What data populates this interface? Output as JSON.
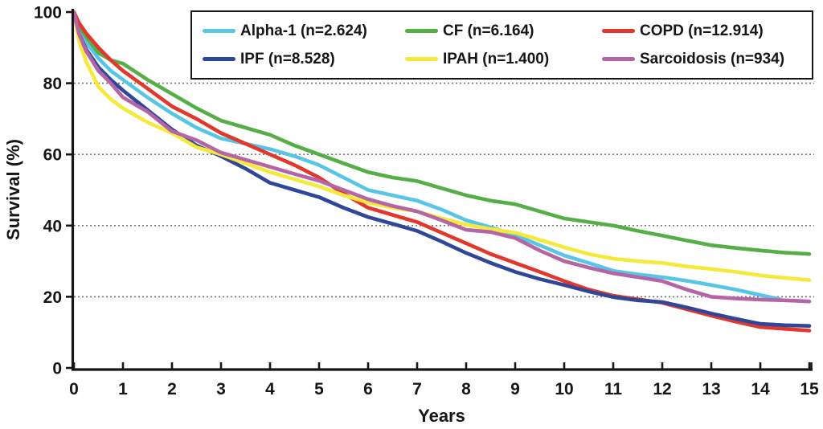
{
  "chart_data": {
    "type": "line",
    "title": "",
    "xlabel": "Years",
    "ylabel": "Survival (%)",
    "xlim": [
      0,
      15
    ],
    "ylim": [
      0,
      100
    ],
    "xticks": [
      0,
      1,
      2,
      3,
      4,
      5,
      6,
      7,
      8,
      9,
      10,
      11,
      12,
      13,
      14,
      15
    ],
    "yticks": [
      0,
      20,
      40,
      60,
      80,
      100
    ],
    "grid": "horizontal dotted gray lines at 20, 40, 60, 80",
    "grid_color": "#7a7a7a",
    "axis_color": "#161616",
    "legend_position": "top inside, boxed, 3 columns x 2 rows",
    "series": [
      {
        "id": "alpha1",
        "label": "Alpha-1 (n=2.624)",
        "color": "#58C5E6",
        "points": [
          [
            0,
            100
          ],
          [
            0.1,
            95
          ],
          [
            0.25,
            91.5
          ],
          [
            0.5,
            87
          ],
          [
            0.75,
            83.5
          ],
          [
            1,
            81
          ],
          [
            1.5,
            76
          ],
          [
            2,
            71.5
          ],
          [
            2.5,
            67.5
          ],
          [
            3,
            64.5
          ],
          [
            3.5,
            63
          ],
          [
            4,
            61.5
          ],
          [
            4.5,
            59.5
          ],
          [
            5,
            57
          ],
          [
            5.5,
            53.5
          ],
          [
            6,
            50
          ],
          [
            6.5,
            48.5
          ],
          [
            7,
            47
          ],
          [
            7.5,
            44.5
          ],
          [
            8,
            41.5
          ],
          [
            8.5,
            39.5
          ],
          [
            9,
            37.3
          ],
          [
            9.5,
            34.5
          ],
          [
            10,
            31.6
          ],
          [
            10.5,
            29.5
          ],
          [
            11,
            27.3
          ],
          [
            11.5,
            26.3
          ],
          [
            12,
            25.5
          ],
          [
            12.5,
            24.5
          ],
          [
            13,
            23.3
          ],
          [
            13.5,
            22
          ],
          [
            14,
            20.5
          ],
          [
            14.4,
            19.3
          ]
        ]
      },
      {
        "id": "cf",
        "label": "CF (n=6.164)",
        "color": "#56AE47",
        "points": [
          [
            0,
            100
          ],
          [
            0.1,
            96
          ],
          [
            0.25,
            93
          ],
          [
            0.5,
            88.5
          ],
          [
            0.75,
            86.5
          ],
          [
            1,
            85.5
          ],
          [
            1.5,
            81
          ],
          [
            2,
            77
          ],
          [
            2.5,
            73
          ],
          [
            3,
            69.5
          ],
          [
            3.5,
            67.5
          ],
          [
            4,
            65.5
          ],
          [
            4.5,
            62.5
          ],
          [
            5,
            60
          ],
          [
            5.5,
            57.5
          ],
          [
            6,
            55
          ],
          [
            6.5,
            53.5
          ],
          [
            7,
            52.5
          ],
          [
            7.5,
            50.5
          ],
          [
            8,
            48.5
          ],
          [
            8.5,
            47
          ],
          [
            9,
            46
          ],
          [
            9.5,
            44
          ],
          [
            10,
            42
          ],
          [
            10.5,
            41
          ],
          [
            11,
            40
          ],
          [
            11.5,
            38.5
          ],
          [
            12,
            37.2
          ],
          [
            12.5,
            35.8
          ],
          [
            13,
            34.5
          ],
          [
            13.5,
            33.7
          ],
          [
            14,
            33
          ],
          [
            14.5,
            32.4
          ],
          [
            15,
            32
          ]
        ]
      },
      {
        "id": "copd",
        "label": "COPD (n=12.914)",
        "color": "#E2372C",
        "points": [
          [
            0,
            100
          ],
          [
            0.1,
            97
          ],
          [
            0.25,
            94
          ],
          [
            0.5,
            90
          ],
          [
            0.75,
            86.5
          ],
          [
            1,
            83.5
          ],
          [
            1.5,
            78.5
          ],
          [
            2,
            73.5
          ],
          [
            2.5,
            70
          ],
          [
            3,
            66
          ],
          [
            3.5,
            63
          ],
          [
            4,
            60
          ],
          [
            4.5,
            57
          ],
          [
            5,
            53.5
          ],
          [
            5.5,
            49
          ],
          [
            6,
            45
          ],
          [
            6.5,
            43
          ],
          [
            7,
            41
          ],
          [
            7.5,
            38
          ],
          [
            8,
            35
          ],
          [
            8.5,
            32
          ],
          [
            9,
            29.5
          ],
          [
            9.5,
            27
          ],
          [
            10,
            24.4
          ],
          [
            10.5,
            22
          ],
          [
            11,
            20.3
          ],
          [
            11.5,
            19.3
          ],
          [
            12,
            18.3
          ],
          [
            12.5,
            16.5
          ],
          [
            13,
            14.7
          ],
          [
            13.5,
            13
          ],
          [
            14,
            11.5
          ],
          [
            14.5,
            11
          ],
          [
            15,
            10.5
          ]
        ]
      },
      {
        "id": "ipf",
        "label": "IPF (n=8.528)",
        "color": "#2F4699",
        "points": [
          [
            0,
            100
          ],
          [
            0.1,
            94
          ],
          [
            0.25,
            89.5
          ],
          [
            0.5,
            84.5
          ],
          [
            0.75,
            81
          ],
          [
            1,
            78
          ],
          [
            1.5,
            72.5
          ],
          [
            2,
            67
          ],
          [
            2.5,
            62.5
          ],
          [
            3,
            59.5
          ],
          [
            3.5,
            56
          ],
          [
            4,
            52
          ],
          [
            4.5,
            50
          ],
          [
            5,
            48
          ],
          [
            5.5,
            45
          ],
          [
            6,
            42.4
          ],
          [
            6.5,
            40.5
          ],
          [
            7,
            38.5
          ],
          [
            7.5,
            35.5
          ],
          [
            8,
            32.3
          ],
          [
            8.5,
            29.5
          ],
          [
            9,
            27
          ],
          [
            9.5,
            25
          ],
          [
            10,
            23.3
          ],
          [
            10.5,
            21.5
          ],
          [
            11,
            19.9
          ],
          [
            11.5,
            19
          ],
          [
            12,
            18.5
          ],
          [
            12.5,
            17
          ],
          [
            13,
            15.3
          ],
          [
            13.5,
            13.8
          ],
          [
            14,
            12.4
          ],
          [
            14.5,
            12
          ],
          [
            15,
            11.8
          ]
        ]
      },
      {
        "id": "ipah",
        "label": "IPAH (n=1.400)",
        "color": "#F5E93C",
        "points": [
          [
            0,
            100
          ],
          [
            0.1,
            92
          ],
          [
            0.25,
            86
          ],
          [
            0.5,
            79
          ],
          [
            0.75,
            75.5
          ],
          [
            1,
            73
          ],
          [
            1.5,
            69
          ],
          [
            2,
            66
          ],
          [
            2.5,
            62
          ],
          [
            3,
            60
          ],
          [
            3.5,
            57.5
          ],
          [
            4,
            55
          ],
          [
            4.5,
            53
          ],
          [
            5,
            51
          ],
          [
            5.5,
            48.5
          ],
          [
            6,
            46.5
          ],
          [
            6.5,
            45
          ],
          [
            7,
            44
          ],
          [
            7.5,
            42
          ],
          [
            8,
            40.3
          ],
          [
            8.5,
            39
          ],
          [
            9,
            38
          ],
          [
            9.5,
            36
          ],
          [
            10,
            33.9
          ],
          [
            10.5,
            32
          ],
          [
            11,
            30.7
          ],
          [
            11.5,
            30
          ],
          [
            12,
            29.5
          ],
          [
            12.5,
            28.5
          ],
          [
            13,
            27.8
          ],
          [
            13.5,
            27
          ],
          [
            14,
            26
          ],
          [
            14.5,
            25.3
          ],
          [
            15,
            24.7
          ]
        ]
      },
      {
        "id": "sarcoidosis",
        "label": "Sarcoidosis (n=934)",
        "color": "#B565A5",
        "points": [
          [
            0,
            100
          ],
          [
            0.1,
            94
          ],
          [
            0.25,
            89
          ],
          [
            0.5,
            83.5
          ],
          [
            0.75,
            80
          ],
          [
            1,
            76
          ],
          [
            1.5,
            72
          ],
          [
            2,
            66.5
          ],
          [
            2.5,
            64
          ],
          [
            3,
            60.5
          ],
          [
            3.5,
            58.5
          ],
          [
            4,
            56.5
          ],
          [
            4.5,
            54.5
          ],
          [
            5,
            52.6
          ],
          [
            5.5,
            50
          ],
          [
            6,
            47.4
          ],
          [
            6.5,
            45.5
          ],
          [
            7,
            44
          ],
          [
            7.5,
            41.5
          ],
          [
            8,
            38.8
          ],
          [
            8.5,
            38.2
          ],
          [
            9,
            36.5
          ],
          [
            9.5,
            33
          ],
          [
            10,
            30
          ],
          [
            10.5,
            28.2
          ],
          [
            11,
            26.6
          ],
          [
            11.5,
            25.5
          ],
          [
            12,
            24.4
          ],
          [
            12.5,
            22
          ],
          [
            13,
            20
          ],
          [
            13.5,
            19.5
          ],
          [
            14,
            19.2
          ],
          [
            14.5,
            19
          ],
          [
            15,
            18.7
          ]
        ]
      }
    ]
  }
}
